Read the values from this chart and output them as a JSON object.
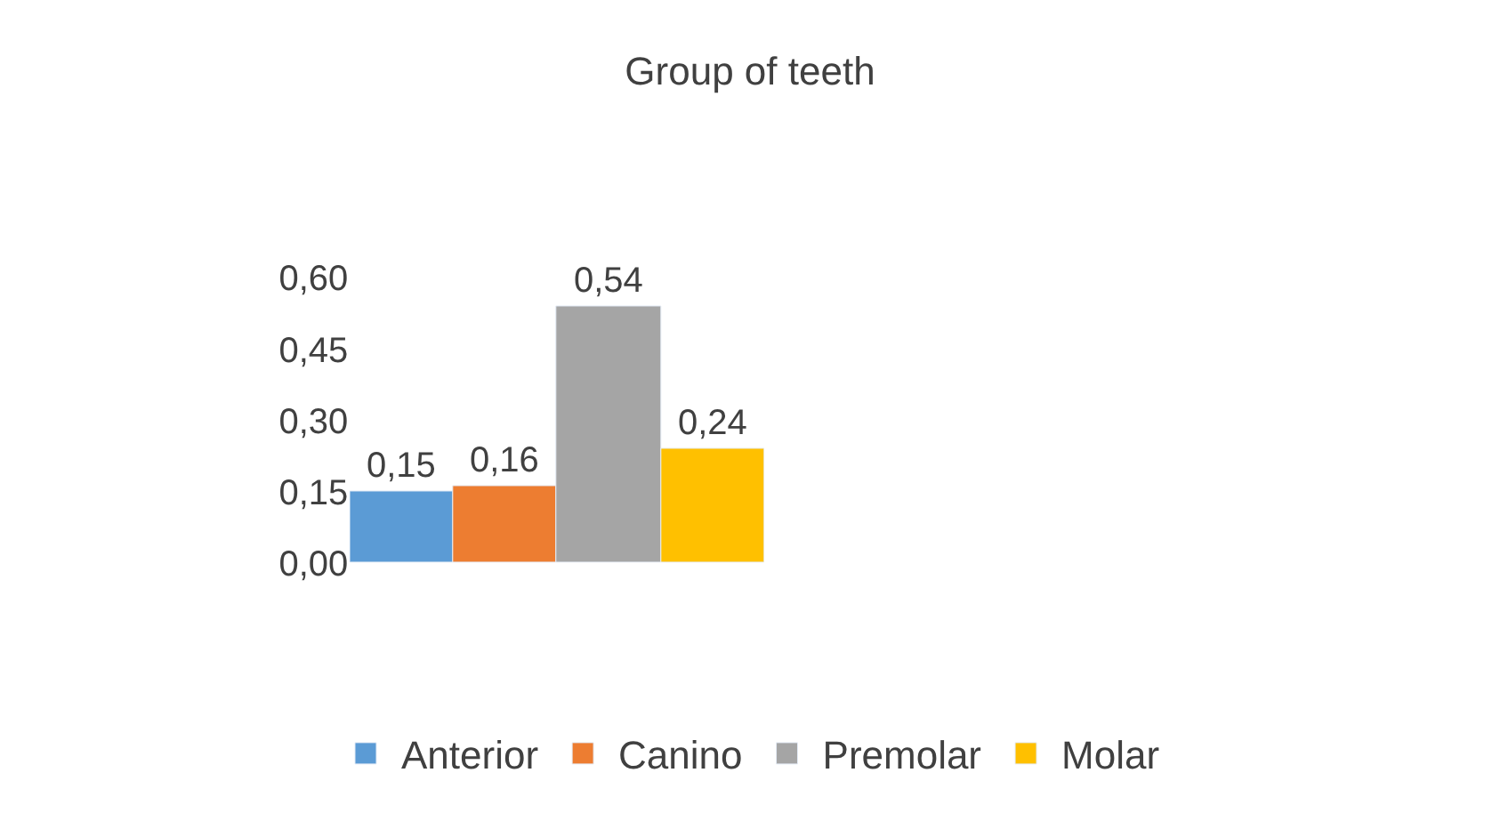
{
  "chart_data": {
    "type": "bar",
    "title": "Group of teeth",
    "categories": [
      null
    ],
    "series": [
      {
        "name": "Anterior",
        "color": "#5b9bd5",
        "values": [
          0.15
        ],
        "value_labels": [
          "0,15"
        ]
      },
      {
        "name": "Canino",
        "color": "#ed7d31",
        "values": [
          0.16
        ],
        "value_labels": [
          "0,16"
        ]
      },
      {
        "name": "Premolar",
        "color": "#a5a5a5",
        "values": [
          0.54
        ],
        "value_labels": [
          "0,54"
        ]
      },
      {
        "name": "Molar",
        "color": "#ffc000",
        "values": [
          0.24
        ],
        "value_labels": [
          "0,24"
        ]
      }
    ],
    "ylim": [
      0,
      0.6
    ],
    "yticks": [
      {
        "value": 0,
        "label": "0,00"
      },
      {
        "value": 0.15,
        "label": "0,15"
      },
      {
        "value": 0.3,
        "label": "0,30"
      },
      {
        "value": 0.45,
        "label": "0,45"
      },
      {
        "value": 0.6,
        "label": "0,60"
      }
    ],
    "tick_labels": "y",
    "legend": "bottom"
  }
}
